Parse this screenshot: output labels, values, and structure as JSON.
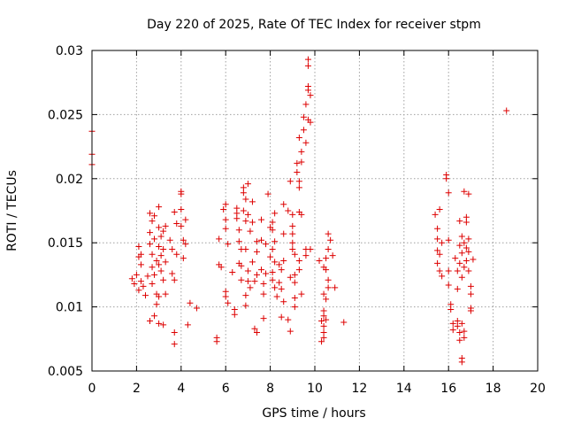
{
  "chart_data": {
    "type": "scatter",
    "title": "Day 220 of 2025, Rate Of TEC Index for receiver stpm",
    "xlabel": "GPS time / hours",
    "ylabel": "ROTI / TECUs",
    "xlim": [
      0,
      20
    ],
    "ylim": [
      0.005,
      0.03
    ],
    "grid": true,
    "marker": "+",
    "color": "#dd0000",
    "xticks": [
      0,
      2,
      4,
      6,
      8,
      10,
      12,
      14,
      16,
      18,
      20
    ],
    "xtick_labels": [
      "0",
      "2",
      "4",
      "6",
      "8",
      "10",
      "12",
      "14",
      "16",
      "18",
      "20"
    ],
    "yticks": [
      0.005,
      0.01,
      0.015,
      0.02,
      0.025,
      0.03
    ],
    "ytick_labels": [
      "0.005",
      "0.01",
      "0.015",
      "0.02",
      "0.025",
      "0.03"
    ],
    "series": [
      {
        "name": "ROTI",
        "points": [
          [
            0.0,
            0.0237
          ],
          [
            0.0,
            0.0219
          ],
          [
            0.0,
            0.0211
          ],
          [
            1.8,
            0.0122
          ],
          [
            1.9,
            0.0118
          ],
          [
            2.0,
            0.0125
          ],
          [
            2.1,
            0.0147
          ],
          [
            2.1,
            0.0139
          ],
          [
            2.1,
            0.0113
          ],
          [
            2.2,
            0.0141
          ],
          [
            2.2,
            0.0133
          ],
          [
            2.2,
            0.012
          ],
          [
            2.3,
            0.0116
          ],
          [
            2.4,
            0.0109
          ],
          [
            2.5,
            0.0124
          ],
          [
            2.6,
            0.0173
          ],
          [
            2.6,
            0.0158
          ],
          [
            2.6,
            0.0149
          ],
          [
            2.7,
            0.0167
          ],
          [
            2.7,
            0.0141
          ],
          [
            2.7,
            0.0131
          ],
          [
            2.7,
            0.0118
          ],
          [
            2.8,
            0.0171
          ],
          [
            2.8,
            0.0153
          ],
          [
            2.8,
            0.0125
          ],
          [
            2.8,
            0.0093
          ],
          [
            2.6,
            0.0089
          ],
          [
            2.9,
            0.0136
          ],
          [
            2.9,
            0.011
          ],
          [
            2.9,
            0.0102
          ],
          [
            3.0,
            0.0178
          ],
          [
            3.0,
            0.0162
          ],
          [
            3.0,
            0.0147
          ],
          [
            3.0,
            0.0133
          ],
          [
            3.0,
            0.0108
          ],
          [
            3.0,
            0.0087
          ],
          [
            3.1,
            0.0155
          ],
          [
            3.1,
            0.014
          ],
          [
            3.1,
            0.0128
          ],
          [
            3.2,
            0.0159
          ],
          [
            3.2,
            0.0145
          ],
          [
            3.2,
            0.0121
          ],
          [
            3.2,
            0.0086
          ],
          [
            3.3,
            0.0163
          ],
          [
            3.3,
            0.0135
          ],
          [
            3.3,
            0.011
          ],
          [
            3.5,
            0.0152
          ],
          [
            3.6,
            0.0145
          ],
          [
            3.6,
            0.0126
          ],
          [
            3.7,
            0.0174
          ],
          [
            3.7,
            0.0121
          ],
          [
            3.7,
            0.008
          ],
          [
            3.7,
            0.0071
          ],
          [
            3.8,
            0.0165
          ],
          [
            3.8,
            0.0141
          ],
          [
            4.0,
            0.019
          ],
          [
            4.0,
            0.0188
          ],
          [
            4.0,
            0.0176
          ],
          [
            4.0,
            0.0163
          ],
          [
            4.1,
            0.0152
          ],
          [
            4.1,
            0.0138
          ],
          [
            4.2,
            0.0168
          ],
          [
            4.2,
            0.0149
          ],
          [
            4.3,
            0.0086
          ],
          [
            4.4,
            0.0103
          ],
          [
            4.7,
            0.0099
          ],
          [
            5.6,
            0.0076
          ],
          [
            5.6,
            0.0073
          ],
          [
            5.7,
            0.0153
          ],
          [
            5.7,
            0.0133
          ],
          [
            5.8,
            0.0131
          ],
          [
            5.9,
            0.0176
          ],
          [
            6.0,
            0.018
          ],
          [
            6.0,
            0.0168
          ],
          [
            6.0,
            0.0161
          ],
          [
            6.0,
            0.0112
          ],
          [
            6.0,
            0.0108
          ],
          [
            6.1,
            0.0149
          ],
          [
            6.1,
            0.0103
          ],
          [
            6.3,
            0.0127
          ],
          [
            6.4,
            0.0098
          ],
          [
            6.4,
            0.0094
          ],
          [
            6.5,
            0.0177
          ],
          [
            6.5,
            0.0173
          ],
          [
            6.5,
            0.0169
          ],
          [
            6.6,
            0.016
          ],
          [
            6.6,
            0.0151
          ],
          [
            6.6,
            0.0134
          ],
          [
            6.7,
            0.0145
          ],
          [
            6.7,
            0.0132
          ],
          [
            6.7,
            0.0121
          ],
          [
            6.8,
            0.0193
          ],
          [
            6.8,
            0.0189
          ],
          [
            6.8,
            0.0175
          ],
          [
            6.9,
            0.0184
          ],
          [
            6.9,
            0.0167
          ],
          [
            6.9,
            0.0145
          ],
          [
            6.9,
            0.0109
          ],
          [
            6.9,
            0.0101
          ],
          [
            7.0,
            0.0196
          ],
          [
            7.0,
            0.0172
          ],
          [
            7.0,
            0.0128
          ],
          [
            7.0,
            0.012
          ],
          [
            7.1,
            0.0159
          ],
          [
            7.1,
            0.0115
          ],
          [
            7.2,
            0.0182
          ],
          [
            7.2,
            0.0166
          ],
          [
            7.2,
            0.0135
          ],
          [
            7.3,
            0.012
          ],
          [
            7.3,
            0.0083
          ],
          [
            7.4,
            0.0151
          ],
          [
            7.4,
            0.0143
          ],
          [
            7.4,
            0.0125
          ],
          [
            7.4,
            0.008
          ],
          [
            7.6,
            0.0168
          ],
          [
            7.6,
            0.0152
          ],
          [
            7.6,
            0.0129
          ],
          [
            7.7,
            0.0118
          ],
          [
            7.7,
            0.011
          ],
          [
            7.7,
            0.0091
          ],
          [
            7.8,
            0.0149
          ],
          [
            7.8,
            0.0126
          ],
          [
            7.9,
            0.0188
          ],
          [
            8.0,
            0.0162
          ],
          [
            8.0,
            0.0139
          ],
          [
            8.1,
            0.0166
          ],
          [
            8.1,
            0.016
          ],
          [
            8.1,
            0.0145
          ],
          [
            8.1,
            0.0127
          ],
          [
            8.1,
            0.0121
          ],
          [
            8.2,
            0.0173
          ],
          [
            8.2,
            0.0151
          ],
          [
            8.2,
            0.0135
          ],
          [
            8.2,
            0.0115
          ],
          [
            8.3,
            0.0108
          ],
          [
            8.4,
            0.0133
          ],
          [
            8.4,
            0.0119
          ],
          [
            8.5,
            0.0129
          ],
          [
            8.5,
            0.0114
          ],
          [
            8.5,
            0.0092
          ],
          [
            8.6,
            0.018
          ],
          [
            8.6,
            0.0157
          ],
          [
            8.6,
            0.0136
          ],
          [
            8.6,
            0.0104
          ],
          [
            8.8,
            0.0175
          ],
          [
            8.8,
            0.009
          ],
          [
            8.9,
            0.0123
          ],
          [
            8.9,
            0.0081
          ],
          [
            9.0,
            0.0172
          ],
          [
            9.0,
            0.0163
          ],
          [
            9.0,
            0.0157
          ],
          [
            9.0,
            0.015
          ],
          [
            9.0,
            0.0145
          ],
          [
            9.1,
            0.0141
          ],
          [
            9.1,
            0.0125
          ],
          [
            9.1,
            0.0119
          ],
          [
            9.1,
            0.0107
          ],
          [
            9.1,
            0.01
          ],
          [
            8.9,
            0.0198
          ],
          [
            9.2,
            0.0212
          ],
          [
            9.2,
            0.0205
          ],
          [
            9.3,
            0.0232
          ],
          [
            9.3,
            0.0198
          ],
          [
            9.3,
            0.0193
          ],
          [
            9.3,
            0.0174
          ],
          [
            9.3,
            0.0136
          ],
          [
            9.3,
            0.0129
          ],
          [
            9.4,
            0.0221
          ],
          [
            9.4,
            0.0213
          ],
          [
            9.4,
            0.0172
          ],
          [
            9.4,
            0.011
          ],
          [
            9.5,
            0.0248
          ],
          [
            9.5,
            0.0238
          ],
          [
            9.6,
            0.0258
          ],
          [
            9.6,
            0.0228
          ],
          [
            9.6,
            0.0145
          ],
          [
            9.6,
            0.014
          ],
          [
            9.7,
            0.0293
          ],
          [
            9.7,
            0.0288
          ],
          [
            9.7,
            0.0272
          ],
          [
            9.7,
            0.0269
          ],
          [
            9.7,
            0.0246
          ],
          [
            9.8,
            0.0265
          ],
          [
            9.8,
            0.0244
          ],
          [
            9.8,
            0.0145
          ],
          [
            10.2,
            0.0136
          ],
          [
            10.3,
            0.0089
          ],
          [
            10.3,
            0.0073
          ],
          [
            10.4,
            0.0131
          ],
          [
            10.4,
            0.011
          ],
          [
            10.4,
            0.0097
          ],
          [
            10.4,
            0.0093
          ],
          [
            10.4,
            0.0085
          ],
          [
            10.4,
            0.008
          ],
          [
            10.4,
            0.0076
          ],
          [
            10.5,
            0.0138
          ],
          [
            10.5,
            0.0129
          ],
          [
            10.5,
            0.0106
          ],
          [
            10.5,
            0.009
          ],
          [
            10.6,
            0.0157
          ],
          [
            10.6,
            0.0145
          ],
          [
            10.6,
            0.0121
          ],
          [
            10.6,
            0.0115
          ],
          [
            10.7,
            0.0152
          ],
          [
            10.8,
            0.014
          ],
          [
            10.9,
            0.0115
          ],
          [
            11.3,
            0.0088
          ],
          [
            15.4,
            0.0172
          ],
          [
            15.5,
            0.0161
          ],
          [
            15.5,
            0.0153
          ],
          [
            15.5,
            0.0144
          ],
          [
            15.5,
            0.0134
          ],
          [
            15.6,
            0.0176
          ],
          [
            15.6,
            0.0141
          ],
          [
            15.6,
            0.0128
          ],
          [
            15.7,
            0.015
          ],
          [
            15.7,
            0.0124
          ],
          [
            15.9,
            0.0203
          ],
          [
            15.9,
            0.02
          ],
          [
            16.0,
            0.0189
          ],
          [
            16.0,
            0.0152
          ],
          [
            16.0,
            0.0128
          ],
          [
            16.0,
            0.0117
          ],
          [
            16.1,
            0.0102
          ],
          [
            16.1,
            0.0098
          ],
          [
            16.2,
            0.0087
          ],
          [
            16.2,
            0.0082
          ],
          [
            16.3,
            0.0138
          ],
          [
            16.4,
            0.0128
          ],
          [
            16.4,
            0.0114
          ],
          [
            16.4,
            0.0089
          ],
          [
            16.4,
            0.0085
          ],
          [
            16.5,
            0.0167
          ],
          [
            16.5,
            0.0148
          ],
          [
            16.5,
            0.0134
          ],
          [
            16.5,
            0.008
          ],
          [
            16.5,
            0.0074
          ],
          [
            16.6,
            0.0155
          ],
          [
            16.6,
            0.0142
          ],
          [
            16.6,
            0.0123
          ],
          [
            16.6,
            0.0087
          ],
          [
            16.6,
            0.006
          ],
          [
            16.6,
            0.0057
          ],
          [
            16.7,
            0.019
          ],
          [
            16.7,
            0.015
          ],
          [
            16.7,
            0.0131
          ],
          [
            16.7,
            0.0081
          ],
          [
            16.7,
            0.0076
          ],
          [
            16.8,
            0.017
          ],
          [
            16.8,
            0.0166
          ],
          [
            16.8,
            0.0146
          ],
          [
            16.8,
            0.0136
          ],
          [
            16.9,
            0.0188
          ],
          [
            16.9,
            0.0153
          ],
          [
            16.9,
            0.0143
          ],
          [
            16.9,
            0.0128
          ],
          [
            17.0,
            0.0116
          ],
          [
            17.0,
            0.011
          ],
          [
            17.0,
            0.0099
          ],
          [
            17.0,
            0.0097
          ],
          [
            17.1,
            0.0137
          ],
          [
            18.6,
            0.0253
          ]
        ]
      }
    ]
  }
}
